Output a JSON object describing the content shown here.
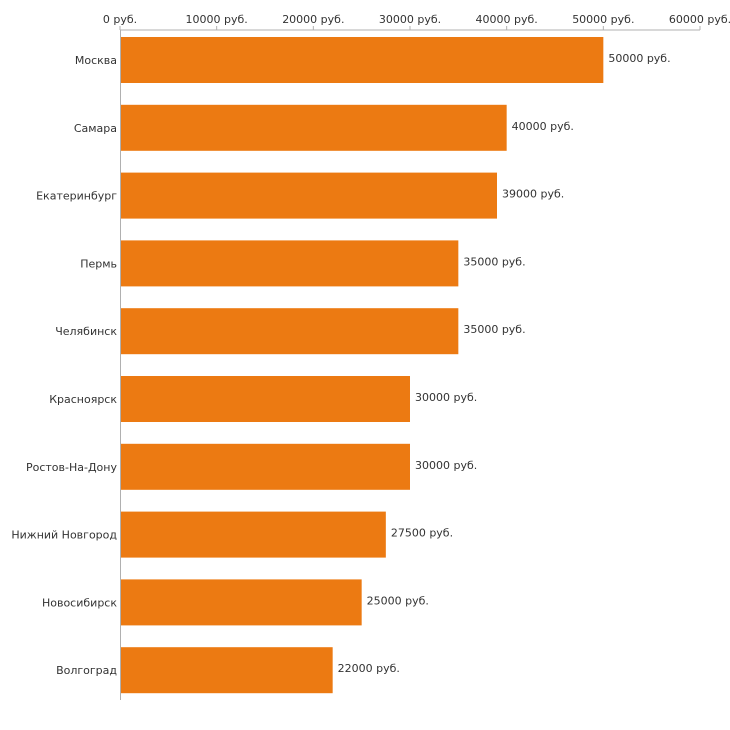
{
  "chart_data": {
    "type": "bar",
    "orientation": "horizontal",
    "categories": [
      "Москва",
      "Самара",
      "Екатеринбург",
      "Пермь",
      "Челябинск",
      "Красноярск",
      "Ростов-На-Дону",
      "Нижний Новгород",
      "Новосибирск",
      "Волгоград"
    ],
    "values": [
      50000,
      40000,
      39000,
      35000,
      35000,
      30000,
      30000,
      27500,
      25000,
      22000
    ],
    "value_labels": [
      "50000 руб.",
      "40000 руб.",
      "39000 руб.",
      "35000 руб.",
      "35000 руб.",
      "30000 руб.",
      "30000 руб.",
      "27500 руб.",
      "25000 руб.",
      "22000 руб."
    ],
    "x_ticks": [
      0,
      10000,
      20000,
      30000,
      40000,
      50000,
      60000
    ],
    "x_tick_labels": [
      "0 руб.",
      "10000 руб.",
      "20000 руб.",
      "30000 руб.",
      "40000 руб.",
      "50000 руб.",
      "60000 руб."
    ],
    "xlim": [
      0,
      60000
    ],
    "x_axis_position": "top",
    "grid": false,
    "legend": "none",
    "bar_color": "#ec7a12",
    "axis_color": "#b0b0b0"
  }
}
